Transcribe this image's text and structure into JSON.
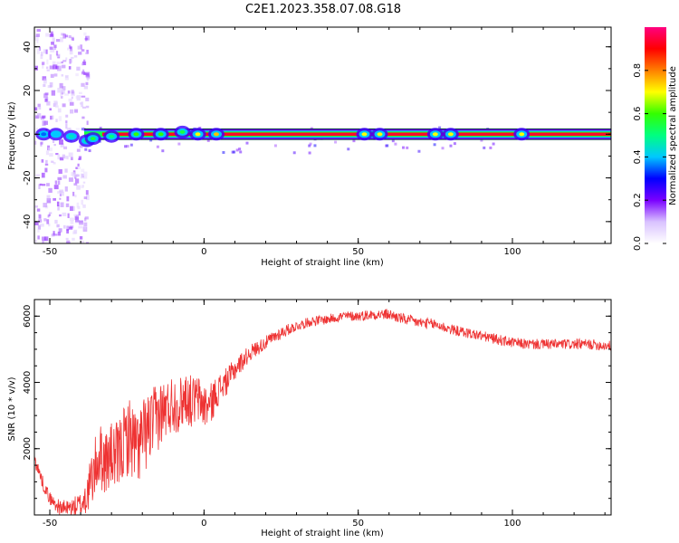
{
  "title": "C2E1.2023.358.07.08.G18",
  "chart_data": [
    {
      "type": "heatmap",
      "name": "spectrogram",
      "xlabel": "Height of straight line (km)",
      "ylabel": "Frequency (Hz)",
      "xlim": [
        -55,
        132
      ],
      "ylim": [
        -50,
        49
      ],
      "xticks": [
        -50,
        0,
        50,
        100
      ],
      "yticks": [
        -40,
        -20,
        0,
        20,
        40
      ],
      "colorbar": {
        "label": "Normalized spectral amplitude",
        "range": [
          0,
          1
        ],
        "ticks": [
          "0.0",
          "0.2",
          "0.4",
          "0.6",
          "0.8"
        ],
        "colors": [
          "#ffffff",
          "#d9c2ff",
          "#7a00ff",
          "#0000ff",
          "#00c8ff",
          "#00ff80",
          "#33ff00",
          "#ffff00",
          "#ff8000",
          "#ff0000",
          "#ff0080"
        ]
      },
      "band": {
        "center_hz": 0,
        "halfwidth_hz": 1.5,
        "start_km": -55,
        "end_km": 132
      },
      "blobs": [
        {
          "x": -52,
          "y": 0,
          "amp": 0.35
        },
        {
          "x": -48,
          "y": 0,
          "amp": 0.4
        },
        {
          "x": -43,
          "y": -1,
          "amp": 0.45
        },
        {
          "x": -38,
          "y": -3,
          "amp": 0.5
        },
        {
          "x": -36,
          "y": -2,
          "amp": 0.55
        },
        {
          "x": -30,
          "y": -1,
          "amp": 0.5
        },
        {
          "x": -22,
          "y": 0,
          "amp": 0.6
        },
        {
          "x": -14,
          "y": 0,
          "amp": 0.6
        },
        {
          "x": -7,
          "y": 1,
          "amp": 0.55
        },
        {
          "x": -2,
          "y": 0,
          "amp": 0.7
        },
        {
          "x": 4,
          "y": 0,
          "amp": 0.75
        },
        {
          "x": 52,
          "y": 0,
          "amp": 0.7
        },
        {
          "x": 57,
          "y": 0,
          "amp": 0.7
        },
        {
          "x": 75,
          "y": 0,
          "amp": 0.7
        },
        {
          "x": 80,
          "y": 0,
          "amp": 0.7
        },
        {
          "x": 103,
          "y": 0,
          "amp": 0.7
        }
      ],
      "scatter_km": [
        -55,
        -38
      ],
      "scatter_hz": [
        -50,
        49
      ]
    },
    {
      "type": "line",
      "name": "snr",
      "xlabel": "Height of straight line (km)",
      "ylabel": "SNR (10 * v/v)",
      "xlim": [
        -55,
        132
      ],
      "ylim": [
        0,
        6500
      ],
      "xticks": [
        -50,
        0,
        50,
        100
      ],
      "yticks": [
        2000,
        4000,
        6000
      ],
      "color": "#ee3333",
      "x": [
        -55,
        -52,
        -50,
        -48,
        -46,
        -44,
        -42,
        -40,
        -38,
        -36,
        -34,
        -32,
        -30,
        -28,
        -26,
        -24,
        -22,
        -20,
        -18,
        -16,
        -14,
        -12,
        -10,
        -8,
        -6,
        -4,
        -2,
        0,
        2,
        4,
        6,
        8,
        10,
        12,
        15,
        20,
        25,
        30,
        35,
        40,
        45,
        50,
        55,
        60,
        65,
        70,
        75,
        80,
        85,
        90,
        95,
        100,
        105,
        110,
        115,
        120,
        125,
        132
      ],
      "y": [
        1700,
        900,
        500,
        300,
        200,
        200,
        250,
        300,
        600,
        1200,
        1800,
        1600,
        1800,
        1700,
        2200,
        2400,
        2000,
        2300,
        2600,
        2800,
        3100,
        3200,
        3400,
        3300,
        3600,
        3400,
        3500,
        3300,
        3300,
        3700,
        3900,
        4100,
        4400,
        4600,
        4900,
        5200,
        5500,
        5700,
        5850,
        5900,
        6000,
        6000,
        6050,
        6050,
        5900,
        5800,
        5750,
        5600,
        5500,
        5400,
        5300,
        5200,
        5150,
        5150,
        5150,
        5150,
        5150,
        5100
      ],
      "noise": [
        200,
        200,
        200,
        200,
        250,
        250,
        300,
        400,
        600,
        900,
        1000,
        1000,
        1000,
        1100,
        1100,
        1200,
        1200,
        1200,
        1100,
        1100,
        1000,
        900,
        900,
        850,
        800,
        800,
        750,
        700,
        650,
        500,
        450,
        400,
        350,
        300,
        250,
        200,
        200,
        150,
        150,
        150,
        150,
        150,
        160,
        170,
        170,
        170,
        170,
        160,
        160,
        160,
        160,
        160,
        160,
        160,
        160,
        160,
        160,
        160
      ]
    }
  ]
}
